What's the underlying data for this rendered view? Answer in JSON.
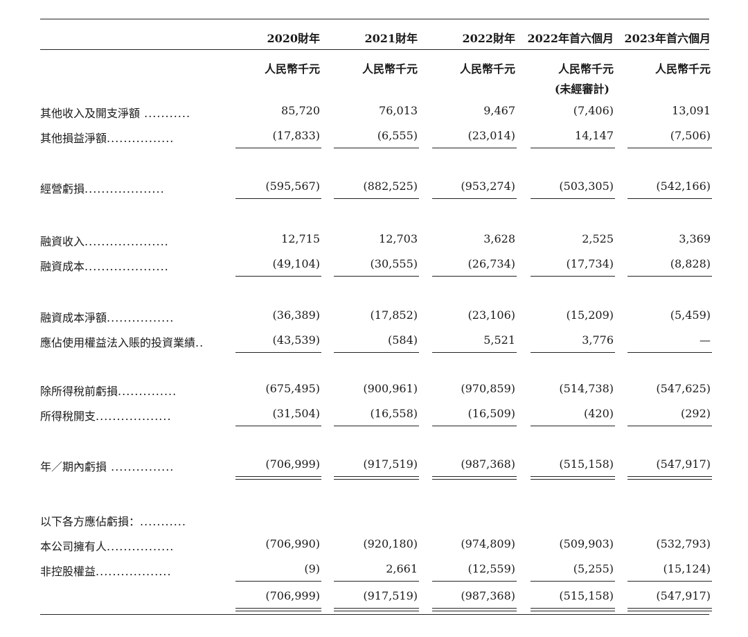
{
  "columns": [
    {
      "year": "2020財年",
      "unit": "人民幣千元",
      "note": ""
    },
    {
      "year": "2021財年",
      "unit": "人民幣千元",
      "note": ""
    },
    {
      "year": "2022財年",
      "unit": "人民幣千元",
      "note": ""
    },
    {
      "year": "2022年首六個月",
      "unit": "人民幣千元",
      "note": "(未經審計)"
    },
    {
      "year": "2023年首六個月",
      "unit": "人民幣千元",
      "note": ""
    }
  ],
  "rows": [
    {
      "label": "其他收入及開支淨額",
      "dots": " ...........",
      "values": [
        "85,720",
        "76,013",
        "9,467",
        "(7,406)",
        "13,091"
      ]
    },
    {
      "label": "其他損益淨額",
      "dots": "................",
      "values": [
        "(17,833)",
        "(6,555)",
        "(23,014)",
        "14,147",
        "(7,506)"
      ]
    },
    {
      "label": "經營虧損",
      "dots": "...................",
      "values": [
        "(595,567)",
        "(882,525)",
        "(953,274)",
        "(503,305)",
        "(542,166)"
      ]
    },
    {
      "label": "融資收入",
      "dots": "....................",
      "values": [
        "12,715",
        "12,703",
        "3,628",
        "2,525",
        "3,369"
      ]
    },
    {
      "label": "融資成本",
      "dots": "....................",
      "values": [
        "(49,104)",
        "(30,555)",
        "(26,734)",
        "(17,734)",
        "(8,828)"
      ]
    },
    {
      "label": "融資成本淨額",
      "dots": "................",
      "values": [
        "(36,389)",
        "(17,852)",
        "(23,106)",
        "(15,209)",
        "(5,459)"
      ]
    },
    {
      "label": "應佔使用權益法入賬的投資業績",
      "dots": "..",
      "values": [
        "(43,539)",
        "(584)",
        "5,521",
        "3,776",
        "—"
      ]
    },
    {
      "label": "除所得稅前虧損",
      "dots": "..............",
      "values": [
        "(675,495)",
        "(900,961)",
        "(970,859)",
        "(514,738)",
        "(547,625)"
      ]
    },
    {
      "label": "所得稅開支",
      "dots": "..................",
      "values": [
        "(31,504)",
        "(16,558)",
        "(16,509)",
        "(420)",
        "(292)"
      ]
    },
    {
      "label": "年／期內虧損",
      "dots": " ...............",
      "values": [
        "(706,999)",
        "(917,519)",
        "(987,368)",
        "(515,158)",
        "(547,917)"
      ]
    },
    {
      "label": "以下各方應佔虧損：",
      "dots": "...........",
      "values": [
        "",
        "",
        "",
        "",
        ""
      ]
    },
    {
      "label": "本公司擁有人",
      "dots": "................",
      "values": [
        "(706,990)",
        "(920,180)",
        "(974,809)",
        "(509,903)",
        "(532,793)"
      ]
    },
    {
      "label": "非控股權益",
      "dots": "..................",
      "values": [
        "(9)",
        "2,661",
        "(12,559)",
        "(5,255)",
        "(15,124)"
      ]
    },
    {
      "label": "",
      "dots": "",
      "values": [
        "(706,999)",
        "(917,519)",
        "(987,368)",
        "(515,158)",
        "(547,917)"
      ]
    }
  ]
}
